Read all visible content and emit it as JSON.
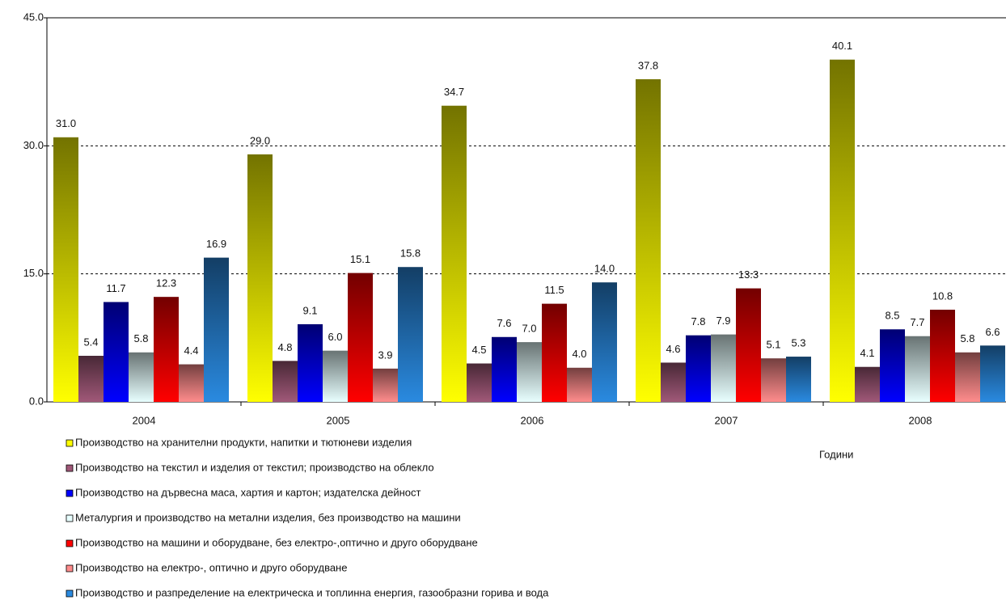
{
  "chart_data": {
    "type": "bar",
    "categories": [
      "2004",
      "2005",
      "2006",
      "2007",
      "2008"
    ],
    "x_label": "Години",
    "ylim": [
      0,
      45
    ],
    "yticks": [
      {
        "value": 0,
        "label": "0.0"
      },
      {
        "value": 15,
        "label": "15.0"
      },
      {
        "value": 30,
        "label": "30.0"
      },
      {
        "value": 45,
        "label": "45.0"
      }
    ],
    "grid": true,
    "legend": "bottom-left",
    "series": [
      {
        "name": "Производство на хранителни продукти, напитки и тютюневи изделия",
        "color": "#ffff00",
        "values": [
          31.0,
          29.0,
          34.7,
          37.8,
          40.1
        ],
        "value_labels": [
          "31.0",
          "29.0",
          "34.7",
          "37.8",
          "40.1"
        ]
      },
      {
        "name": "Производство на текстил и изделия от текстил; производство на облекло",
        "color": "#a05878",
        "values": [
          5.4,
          4.8,
          4.5,
          4.6,
          4.1
        ],
        "value_labels": [
          "5.4",
          "4.8",
          "4.5",
          "4.6",
          "4.1"
        ]
      },
      {
        "name": "Производство на дървесна маса, хартия и картон; издателска дейност",
        "color": "#0000ff",
        "values": [
          11.7,
          9.1,
          7.6,
          7.8,
          8.5
        ],
        "value_labels": [
          "11.7",
          "9.1",
          "7.6",
          "7.8",
          "8.5"
        ]
      },
      {
        "name": "Металургия и производство на метални изделия, без производство на машини",
        "color": "#e8ffff",
        "values": [
          5.8,
          6.0,
          7.0,
          7.9,
          7.7
        ],
        "value_labels": [
          "5.8",
          "6.0",
          "7.0",
          "7.9",
          "7.7"
        ]
      },
      {
        "name": "Производство на машини и оборудване, без електро-,оптично и друго оборудване",
        "color": "#ff0000",
        "values": [
          12.3,
          15.1,
          11.5,
          13.3,
          10.8
        ],
        "value_labels": [
          "12.3",
          "15.1",
          "11.5",
          "13.3",
          "10.8"
        ]
      },
      {
        "name": "Производство на електро-, оптично и друго оборудване",
        "color": "#ff8c8c",
        "values": [
          4.4,
          3.9,
          4.0,
          5.1,
          5.8
        ],
        "value_labels": [
          "4.4",
          "3.9",
          "4.0",
          "5.1",
          "5.8"
        ]
      },
      {
        "name": "Производство и разпределение на електрическа и топлинна енергия, газообразни горива и вода",
        "color": "#2a8ae0",
        "values": [
          16.9,
          15.8,
          14.0,
          5.3,
          6.6
        ],
        "value_labels": [
          "16.9",
          "15.8",
          "14.0",
          "5.3",
          "6.6"
        ]
      }
    ]
  }
}
